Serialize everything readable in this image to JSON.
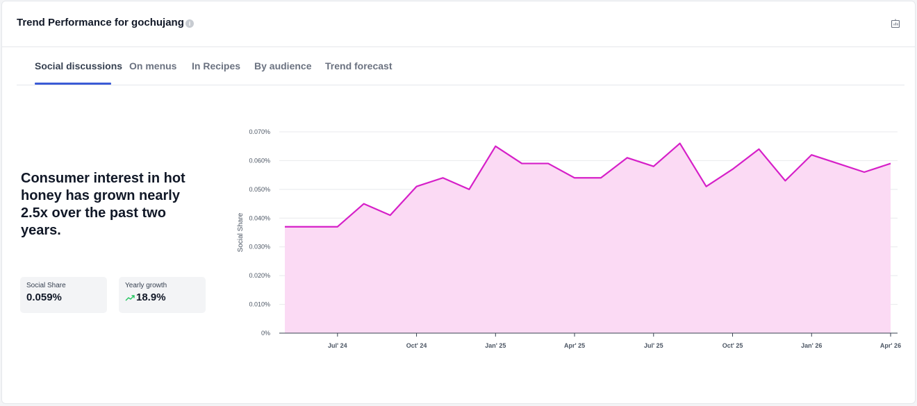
{
  "header": {
    "title": "Trend Performance for gochujang",
    "info_icon": "info-icon",
    "export_icon": "export-icon"
  },
  "tabs": [
    {
      "label": "Social discussions",
      "active": true
    },
    {
      "label": "On menus",
      "active": false
    },
    {
      "label": "In Recipes",
      "active": false
    },
    {
      "label": "By audience",
      "active": false
    },
    {
      "label": "Trend forecast",
      "active": false
    }
  ],
  "summary": {
    "headline": "Consumer interest in hot honey has grown nearly 2.5x over the past two years.",
    "stats": [
      {
        "label": "Social Share",
        "value": "0.059%"
      },
      {
        "label": "Yearly growth",
        "value": "18.9%",
        "icon": "trend-up-icon",
        "icon_color": "#22c55e"
      }
    ]
  },
  "chart_data": {
    "type": "area",
    "ylabel": "Social Share",
    "ylim": [
      0,
      0.07
    ],
    "y_ticks": [
      0,
      0.01,
      0.02,
      0.03,
      0.04,
      0.05,
      0.06,
      0.07
    ],
    "y_tick_labels": [
      "0%",
      "0.010%",
      "0.020%",
      "0.030%",
      "0.040%",
      "0.050%",
      "0.060%",
      "0.070%"
    ],
    "x_tick_labels": [
      "Jul' 24",
      "Oct' 24",
      "Jan' 25",
      "Apr' 25",
      "Jul' 25",
      "Oct' 25",
      "Jan' 26",
      "Apr' 26"
    ],
    "x_tick_months": [
      "2024-07",
      "2024-10",
      "2025-01",
      "2025-04",
      "2025-07",
      "2025-10",
      "2026-01",
      "2026-04"
    ],
    "grid": true,
    "line_color": "#d61fc8",
    "fill_color": "#fbdaf4",
    "series": [
      {
        "x": [
          "2024-05",
          "2024-06",
          "2024-07",
          "2024-08",
          "2024-09",
          "2024-10",
          "2024-11",
          "2024-12",
          "2025-01",
          "2025-02",
          "2025-03",
          "2025-04",
          "2025-05",
          "2025-06",
          "2025-07",
          "2025-08",
          "2025-09",
          "2025-10",
          "2025-11",
          "2025-12",
          "2026-01",
          "2026-02",
          "2026-03",
          "2026-04"
        ],
        "values": [
          0.037,
          0.037,
          0.037,
          0.045,
          0.041,
          0.051,
          0.054,
          0.05,
          0.065,
          0.059,
          0.059,
          0.054,
          0.054,
          0.061,
          0.058,
          0.066,
          0.051,
          0.057,
          0.064,
          0.053,
          0.062,
          0.059,
          0.056,
          0.059
        ]
      }
    ]
  }
}
